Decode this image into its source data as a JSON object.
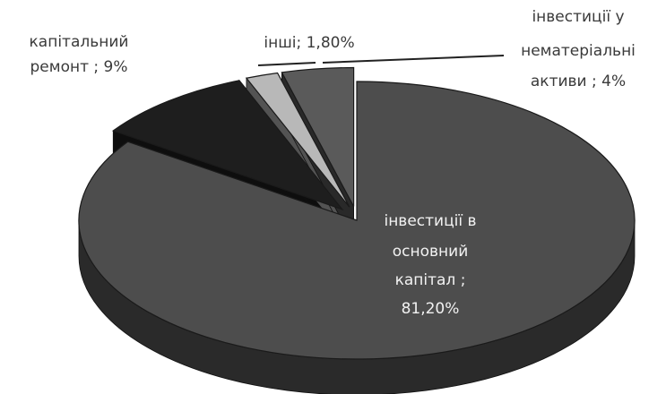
{
  "chart_data": {
    "type": "pie",
    "title": "",
    "slices": [
      {
        "label": "інвестиції в основний капітал ; 81,20%",
        "value": 81.2,
        "lines": [
          "інвестиції в",
          "основний",
          "капітал ;",
          "81,20%"
        ],
        "color": "#4d4d4d",
        "explode": false
      },
      {
        "label": "капітальний ремонт ; 9%",
        "value": 9,
        "lines": [
          "капітальний",
          "ремонт ; 9%"
        ],
        "color": "#1e1e1e",
        "explode": true
      },
      {
        "label": "інші; 1,80%",
        "value": 1.8,
        "lines": [
          "інші; 1,80%"
        ],
        "color": "#b8b8b8",
        "explode": true
      },
      {
        "label": "інвестиції у нематеріальні активи ; 4%",
        "value": 4,
        "lines": [
          "інвестиції у",
          "нематеріальні",
          "активи ; 4%"
        ],
        "color": "#5a5a5a",
        "explode": true
      }
    ],
    "legend": "none"
  }
}
